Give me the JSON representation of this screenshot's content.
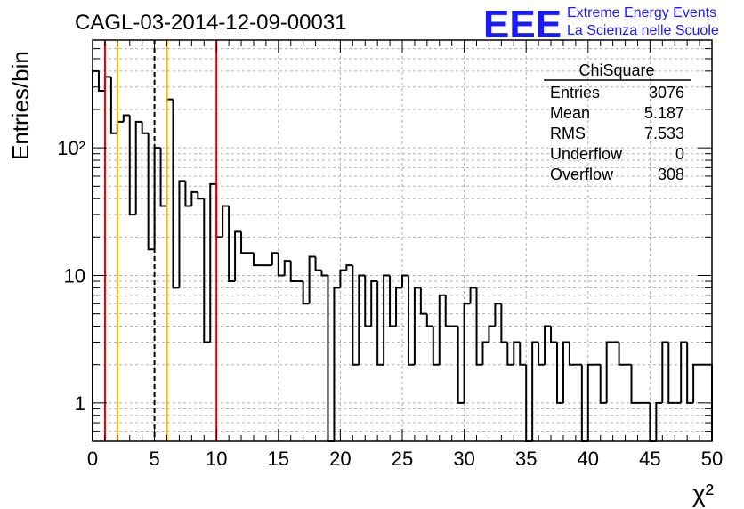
{
  "page": {
    "title": "CAGL-03-2014-12-09-00031",
    "logo": {
      "mark": "EEE",
      "line1": "Extreme Energy Events",
      "line2": "La Scienza nelle Scuole",
      "color": "#1a1aff"
    }
  },
  "stats_box": {
    "title": "ChiSquare",
    "rows": [
      {
        "label": "Entries",
        "value": "3076"
      },
      {
        "label": "Mean",
        "value": "5.187"
      },
      {
        "label": "RMS",
        "value": "7.533"
      },
      {
        "label": "Underflow",
        "value": "0"
      },
      {
        "label": "Overflow",
        "value": "308"
      }
    ]
  },
  "chart_data": {
    "type": "bar",
    "histogram": true,
    "ylog": true,
    "grid": true,
    "xlabel": "χ²",
    "ylabel": "Entries/bin",
    "xlim": [
      0,
      50
    ],
    "ylim": [
      0.5,
      700
    ],
    "xticks": [
      0,
      5,
      10,
      15,
      20,
      25,
      30,
      35,
      40,
      45,
      50
    ],
    "yticks": [
      {
        "value": 1,
        "label": "1"
      },
      {
        "value": 10,
        "label": "10"
      },
      {
        "value": 100,
        "label": "10²"
      }
    ],
    "bin_width": 0.5,
    "values": [
      400,
      280,
      360,
      130,
      160,
      180,
      30,
      160,
      130,
      16,
      100,
      35,
      240,
      8,
      55,
      35,
      45,
      40,
      3,
      52,
      20,
      35,
      9,
      22,
      15,
      15,
      12,
      12,
      12,
      15,
      10,
      13,
      9,
      9,
      6,
      14,
      11,
      10,
      0.3,
      8,
      11,
      12,
      2,
      10,
      4,
      9,
      2,
      10,
      4,
      8,
      10,
      2,
      8,
      5,
      4,
      2,
      7,
      4,
      4,
      1,
      6,
      8,
      2,
      3,
      4,
      6,
      3,
      2,
      3,
      2,
      0.3,
      3,
      2,
      4,
      3,
      1,
      3,
      2,
      2,
      0.3,
      2,
      2,
      1,
      3,
      3,
      2,
      2,
      1,
      1,
      1,
      0.3,
      1,
      3,
      1,
      1,
      3,
      1,
      2,
      2,
      2
    ],
    "markers": [
      {
        "x": 1,
        "color": "#e00000",
        "style": "solid"
      },
      {
        "x": 2,
        "color": "#f0b400",
        "style": "solid"
      },
      {
        "x": 5,
        "color": "#000000",
        "style": "dashed"
      },
      {
        "x": 6,
        "color": "#f0b400",
        "style": "solid"
      },
      {
        "x": 10,
        "color": "#e00000",
        "style": "solid"
      }
    ]
  }
}
